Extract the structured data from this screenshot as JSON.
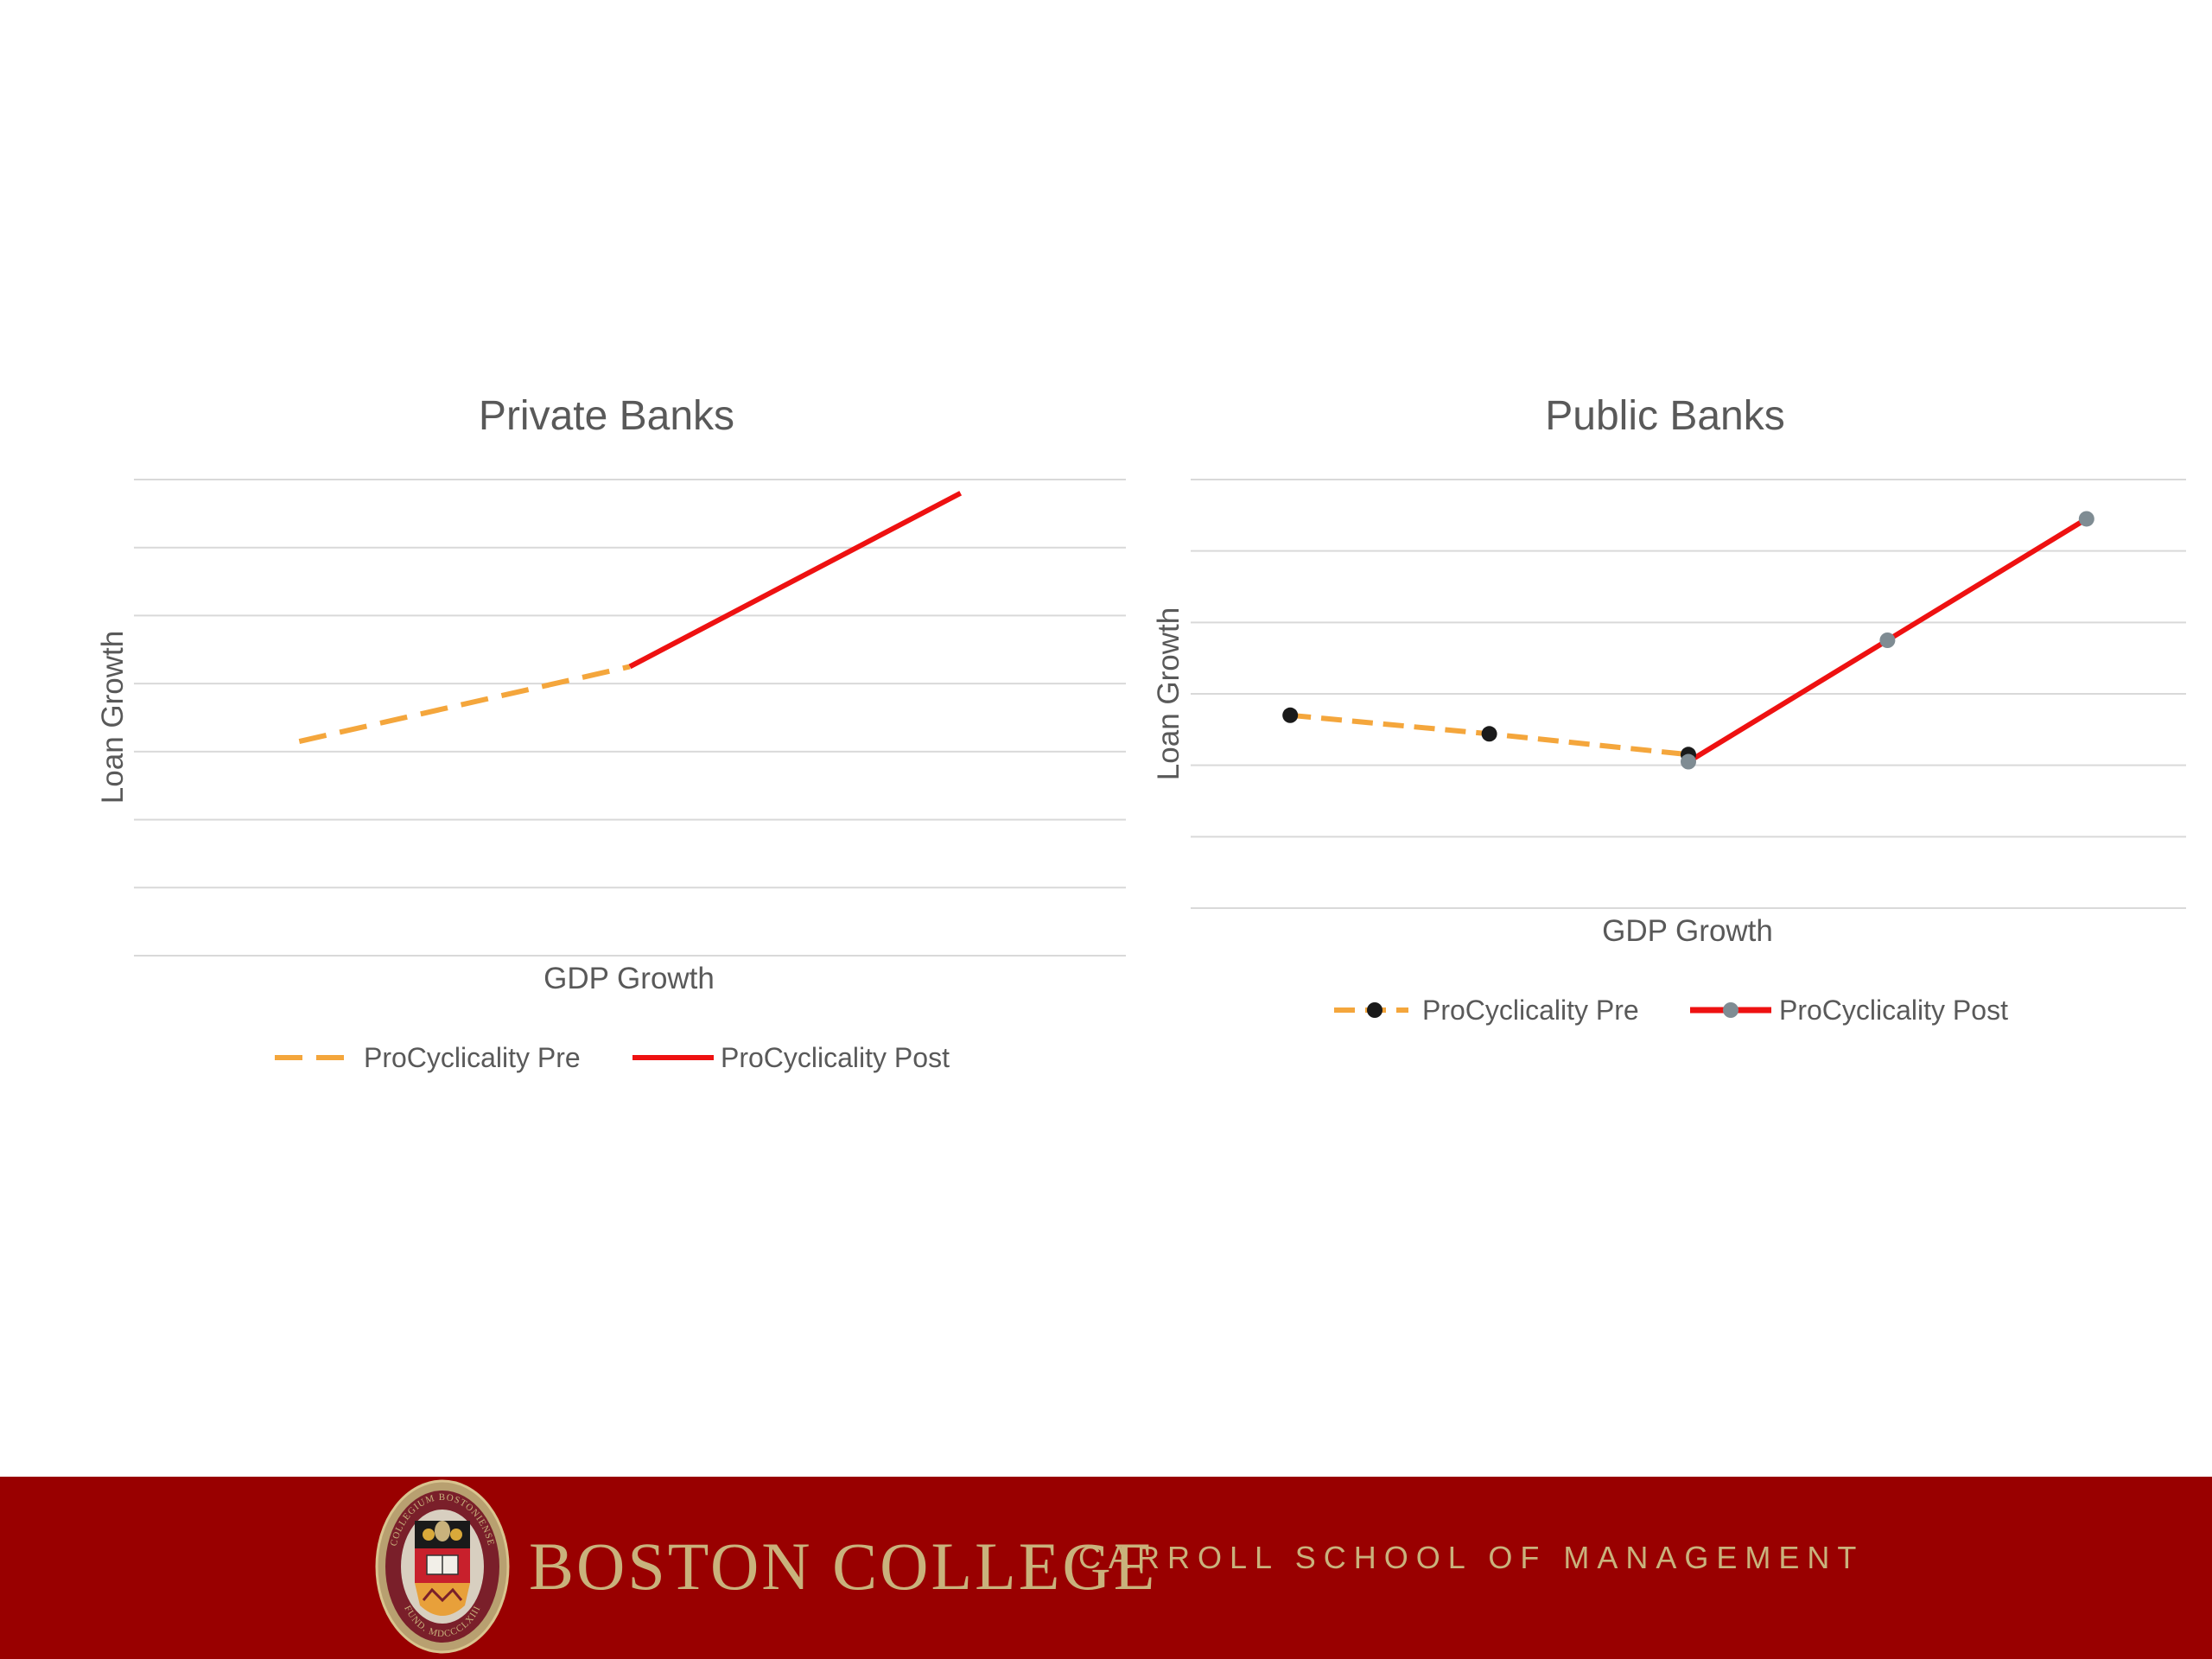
{
  "chart_data": [
    {
      "type": "line",
      "title": "Private Banks",
      "xlabel": "GDP Growth",
      "ylabel": "Loan Growth",
      "x": [
        1,
        2,
        3
      ],
      "grid": true,
      "legend_position": "bottom",
      "series": [
        {
          "name": "ProCyclicality Pre",
          "color": "#f4a63c",
          "dash": "dashed",
          "markers": false,
          "x": [
            1,
            2
          ],
          "values": [
            3.15,
            4.25
          ]
        },
        {
          "name": "ProCyclicality Post",
          "color": "#ee1111",
          "dash": "solid",
          "markers": false,
          "x": [
            2,
            3
          ],
          "values": [
            4.25,
            6.8
          ]
        }
      ],
      "ylim": [
        0,
        7
      ]
    },
    {
      "type": "line",
      "title": "Public Banks",
      "xlabel": "GDP Growth",
      "ylabel": "Loan Growth",
      "x": [
        1,
        2,
        3,
        4,
        5
      ],
      "grid": true,
      "legend_position": "bottom",
      "series": [
        {
          "name": "ProCyclicality Pre",
          "color": "#f4a63c",
          "dash": "dashed",
          "markers": true,
          "marker_color": "#1a1a1a",
          "x": [
            1,
            2,
            3
          ],
          "values": [
            2.7,
            2.44,
            2.15
          ]
        },
        {
          "name": "ProCyclicality Post",
          "color": "#ee1111",
          "dash": "solid",
          "markers": true,
          "marker_color": "#7f8c93",
          "x": [
            3,
            4,
            5
          ],
          "values": [
            2.05,
            3.75,
            5.45
          ]
        }
      ],
      "ylim": [
        0,
        6
      ]
    }
  ],
  "footer": {
    "brand_main": "BOSTON COLLEGE",
    "brand_sub": "CARROLL SCHOOL OF MANAGEMENT",
    "seal_text_top": "COLLEGIUM BOSTONIENSE",
    "seal_text_bottom": "FUND. MDCCCLXIII",
    "background": "#990000",
    "text_color": "#c9b27c"
  }
}
